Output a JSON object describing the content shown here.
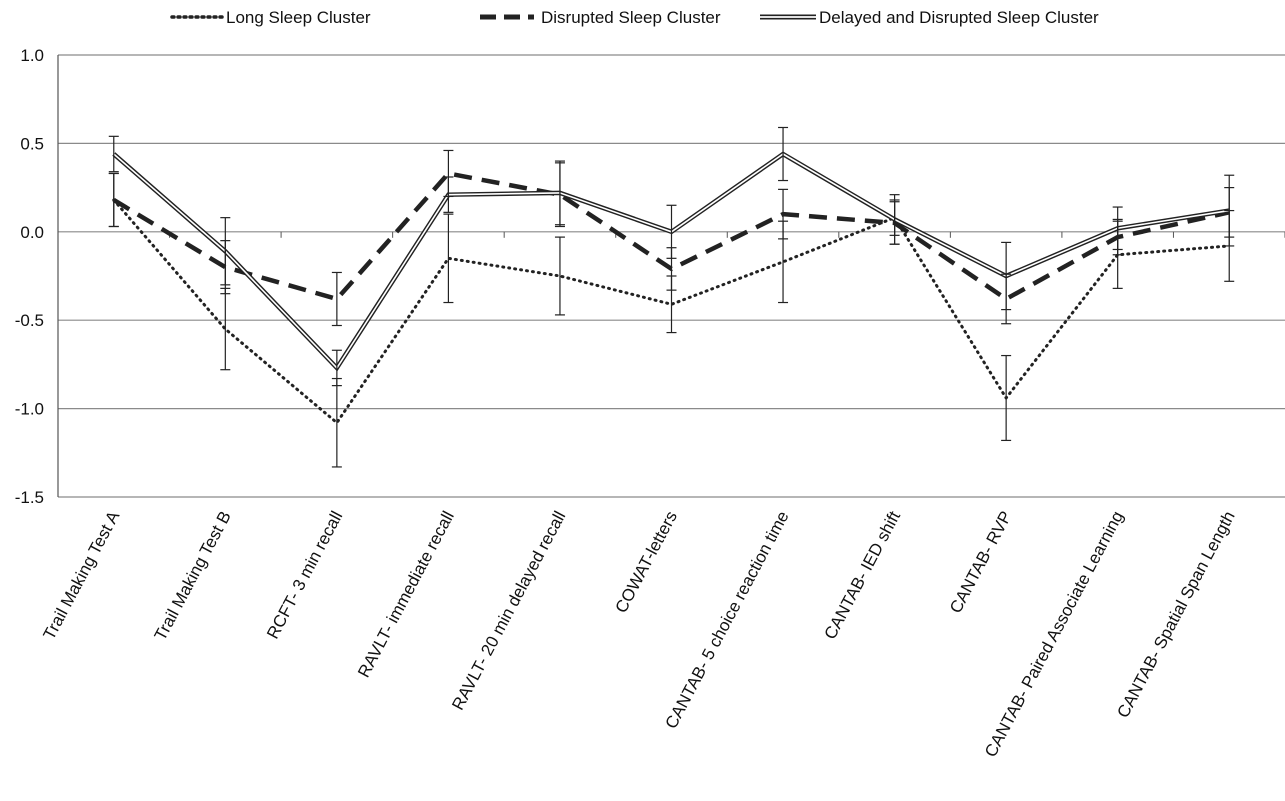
{
  "chart_data": {
    "type": "line",
    "title": "",
    "xlabel": "",
    "ylabel": "",
    "ylim": [
      -1.5,
      1.0
    ],
    "yticks": [
      "1.0",
      "0.5",
      "0.0",
      "-0.5",
      "-1.0",
      "-1.5"
    ],
    "ytick_values": [
      1.0,
      0.5,
      0.0,
      -0.5,
      -1.0,
      -1.5
    ],
    "grid": "horizontal",
    "legend_position": "top",
    "categories": [
      "Trail Making Test A",
      "Trail Making Test B",
      "RCFT- 3 min recall",
      "RAVLT- immediate recall",
      "RAVLT- 20 min delayed recall",
      "COWAT-letters",
      "CANTAB- 5 choice reaction time",
      "CANTAB- IED shift",
      "CANTAB- RVP",
      "CANTAB- Paired Associate Learning",
      "CANTAB- Spatial Span Length"
    ],
    "series": [
      {
        "name": "Long Sleep Cluster",
        "style": "dotted",
        "color": "#222222",
        "values": [
          0.18,
          -0.55,
          -1.08,
          -0.15,
          -0.25,
          -0.41,
          -0.17,
          0.08,
          -0.94,
          -0.13,
          -0.08
        ],
        "error": [
          0.15,
          0.23,
          0.25,
          0.25,
          0.22,
          0.16,
          0.23,
          0.1,
          0.24,
          0.19,
          0.2
        ]
      },
      {
        "name": "Disrupted Sleep Cluster",
        "style": "dashed",
        "color": "#222222",
        "values": [
          0.18,
          -0.2,
          -0.38,
          0.33,
          0.21,
          -0.21,
          0.1,
          0.05,
          -0.38,
          -0.03,
          0.11
        ],
        "error": [
          0.15,
          0.15,
          0.15,
          0.13,
          0.18,
          0.12,
          0.14,
          0.12,
          0.14,
          0.1,
          0.14
        ]
      },
      {
        "name": "Delayed and Disrupted Sleep Cluster",
        "style": "double",
        "color": "#222222",
        "values": [
          0.44,
          -0.11,
          -0.77,
          0.21,
          0.22,
          0.0,
          0.44,
          0.07,
          -0.25,
          0.02,
          0.12
        ],
        "error": [
          0.1,
          0.19,
          0.1,
          0.1,
          0.18,
          0.15,
          0.15,
          0.14,
          0.19,
          0.12,
          0.2
        ]
      }
    ]
  }
}
